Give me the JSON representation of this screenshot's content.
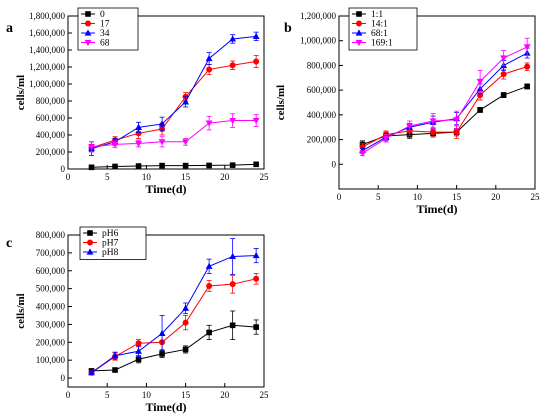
{
  "chart_data": [
    {
      "panel_label": "a",
      "type": "line",
      "xlabel": "Time(d)",
      "ylabel": "cells/ml",
      "xlim": [
        0,
        25
      ],
      "ylim": [
        0,
        1800000
      ],
      "xticks": [
        0,
        5,
        10,
        15,
        20,
        25
      ],
      "yticks": [
        0,
        200000,
        400000,
        600000,
        800000,
        1000000,
        1200000,
        1400000,
        1600000,
        1800000
      ],
      "ytick_labels": [
        "0",
        "200,000",
        "400,000",
        "600,000",
        "800,000",
        "1,000,000",
        "1,200,000",
        "1,400,000",
        "1,600,000",
        "1,800,000"
      ],
      "legend_position": "top-left",
      "x": [
        3,
        6,
        9,
        12,
        15,
        18,
        21,
        24
      ],
      "series": [
        {
          "name": "0",
          "color": "#000000",
          "marker": "square",
          "values": [
            20000,
            30000,
            35000,
            40000,
            40000,
            42000,
            45000,
            55000
          ],
          "errors": [
            5000,
            5000,
            5000,
            5000,
            5000,
            5000,
            5000,
            5000
          ]
        },
        {
          "name": "17",
          "color": "#ff0000",
          "marker": "circle",
          "values": [
            250000,
            340000,
            420000,
            470000,
            850000,
            1170000,
            1220000,
            1265000
          ],
          "errors": [
            40000,
            40000,
            60000,
            70000,
            50000,
            60000,
            50000,
            70000
          ]
        },
        {
          "name": "34",
          "color": "#0000ff",
          "marker": "triangle",
          "values": [
            240000,
            320000,
            490000,
            530000,
            790000,
            1300000,
            1530000,
            1560000
          ],
          "errors": [
            80000,
            40000,
            60000,
            80000,
            60000,
            70000,
            50000,
            50000
          ]
        },
        {
          "name": "68",
          "color": "#ff00ff",
          "marker": "triangle-down",
          "values": [
            260000,
            290000,
            300000,
            320000,
            320000,
            540000,
            570000,
            570000
          ],
          "errors": [
            60000,
            40000,
            40000,
            60000,
            40000,
            80000,
            80000,
            70000
          ]
        }
      ]
    },
    {
      "panel_label": "b",
      "type": "line",
      "xlabel": "Time(d)",
      "ylabel": "cells/ml",
      "xlim": [
        0,
        25
      ],
      "ylim": [
        -200000,
        1200000
      ],
      "xticks": [
        0,
        5,
        10,
        15,
        20,
        25
      ],
      "yticks": [
        0,
        200000,
        400000,
        600000,
        800000,
        1000000,
        1200000
      ],
      "ytick_labels": [
        "0",
        "200,000",
        "400,000",
        "600,000",
        "800,000",
        "1,000,000",
        "1,200,000"
      ],
      "legend_position": "top-left",
      "x": [
        3,
        6,
        9,
        12,
        15,
        18,
        21,
        24
      ],
      "series": [
        {
          "name": "1:1",
          "color": "#000000",
          "marker": "square",
          "values": [
            160000,
            230000,
            240000,
            250000,
            260000,
            440000,
            560000,
            630000
          ],
          "errors": [
            30000,
            30000,
            30000,
            30000,
            30000,
            20000,
            20000,
            20000
          ]
        },
        {
          "name": "14:1",
          "color": "#ff0000",
          "marker": "circle",
          "values": [
            140000,
            240000,
            270000,
            260000,
            260000,
            560000,
            730000,
            790000
          ],
          "errors": [
            30000,
            30000,
            40000,
            40000,
            50000,
            40000,
            40000,
            30000
          ]
        },
        {
          "name": "68:1",
          "color": "#0000ff",
          "marker": "triangle",
          "values": [
            110000,
            220000,
            300000,
            340000,
            370000,
            610000,
            800000,
            900000
          ],
          "errors": [
            20000,
            30000,
            30000,
            50000,
            50000,
            40000,
            40000,
            40000
          ]
        },
        {
          "name": "169:1",
          "color": "#ff00ff",
          "marker": "triangle-down",
          "values": [
            90000,
            210000,
            310000,
            350000,
            360000,
            670000,
            860000,
            950000
          ],
          "errors": [
            20000,
            30000,
            40000,
            60000,
            70000,
            90000,
            60000,
            70000
          ]
        }
      ]
    },
    {
      "panel_label": "c",
      "type": "line",
      "xlabel": "Time(d)",
      "ylabel": "cells/ml",
      "xlim": [
        0,
        25
      ],
      "ylim": [
        -50000,
        800000
      ],
      "xticks": [
        0,
        5,
        10,
        15,
        20,
        25
      ],
      "yticks": [
        0,
        100000,
        200000,
        300000,
        400000,
        500000,
        600000,
        700000,
        800000
      ],
      "ytick_labels": [
        "0",
        "100,000",
        "200,000",
        "300,000",
        "400,000",
        "500,000",
        "600,000",
        "700,000",
        "800,000"
      ],
      "legend_position": "top-left",
      "x": [
        3,
        6,
        9,
        12,
        15,
        18,
        21,
        24
      ],
      "series": [
        {
          "name": "pH6",
          "color": "#000000",
          "marker": "square",
          "values": [
            40000,
            45000,
            105000,
            135000,
            160000,
            255000,
            295000,
            285000
          ],
          "errors": [
            10000,
            10000,
            20000,
            20000,
            20000,
            40000,
            80000,
            40000
          ]
        },
        {
          "name": "pH7",
          "color": "#ff0000",
          "marker": "circle",
          "values": [
            30000,
            120000,
            195000,
            200000,
            310000,
            515000,
            525000,
            555000
          ],
          "errors": [
            10000,
            20000,
            20000,
            40000,
            40000,
            30000,
            50000,
            30000
          ]
        },
        {
          "name": "pH8",
          "color": "#0000ff",
          "marker": "triangle",
          "values": [
            30000,
            125000,
            150000,
            250000,
            390000,
            625000,
            680000,
            685000
          ],
          "errors": [
            10000,
            20000,
            30000,
            100000,
            30000,
            40000,
            100000,
            40000
          ]
        }
      ]
    }
  ]
}
